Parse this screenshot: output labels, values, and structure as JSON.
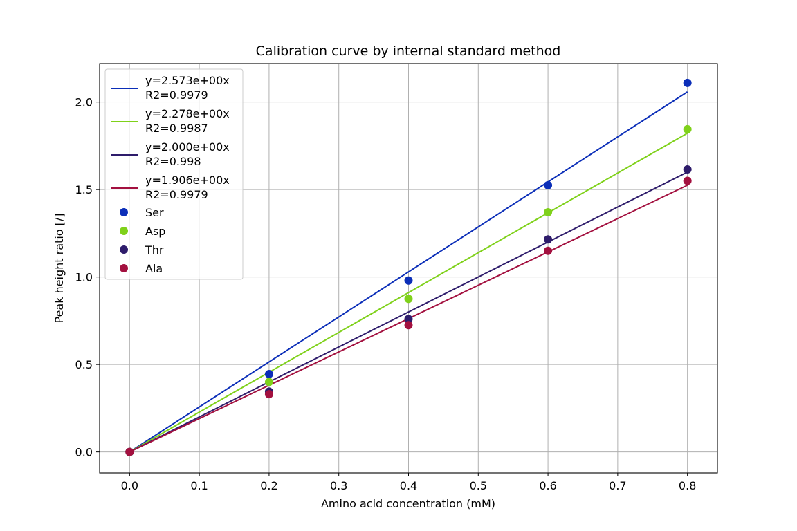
{
  "chart_data": {
    "type": "scatter",
    "title": "Calibration curve by internal standard method",
    "xlabel": "Amino acid concentration (mM)",
    "ylabel": "Peak height ratio [/]",
    "xlim": [
      -0.043,
      0.843
    ],
    "ylim": [
      -0.12,
      2.22
    ],
    "xticks": [
      0.0,
      0.1,
      0.2,
      0.3,
      0.4,
      0.5,
      0.6,
      0.7,
      0.8
    ],
    "xtick_labels": [
      "0.0",
      "0.1",
      "0.2",
      "0.3",
      "0.4",
      "0.5",
      "0.6",
      "0.7",
      "0.8"
    ],
    "yticks": [
      0.0,
      0.5,
      1.0,
      1.5,
      2.0
    ],
    "ytick_labels": [
      "0.0",
      "0.5",
      "1.0",
      "1.5",
      "2.0"
    ],
    "grid": true,
    "legend_position": "top-left",
    "x": [
      0.0,
      0.2,
      0.4,
      0.6,
      0.8
    ],
    "series": [
      {
        "name": "Ser",
        "color": "#0b2eb8",
        "values": [
          0.0,
          0.445,
          0.98,
          1.525,
          2.11
        ],
        "fit": {
          "slope": 2.573,
          "label_line1": "y=2.573e+00x",
          "label_line2": "R2=0.9979"
        }
      },
      {
        "name": "Asp",
        "color": "#7fd11a",
        "values": [
          0.0,
          0.4,
          0.875,
          1.37,
          1.845
        ],
        "fit": {
          "slope": 2.278,
          "label_line1": "y=2.278e+00x",
          "label_line2": "R2=0.9987"
        }
      },
      {
        "name": "Thr",
        "color": "#2e1c6b",
        "values": [
          0.0,
          0.345,
          0.76,
          1.215,
          1.615
        ],
        "fit": {
          "slope": 2.0,
          "label_line1": "y=2.000e+00x",
          "label_line2": "R2=0.998"
        }
      },
      {
        "name": "Ala",
        "color": "#a3103f",
        "values": [
          0.0,
          0.33,
          0.725,
          1.15,
          1.55
        ],
        "fit": {
          "slope": 1.906,
          "label_line1": "y=1.906e+00x",
          "label_line2": "R2=0.9979"
        }
      }
    ]
  }
}
